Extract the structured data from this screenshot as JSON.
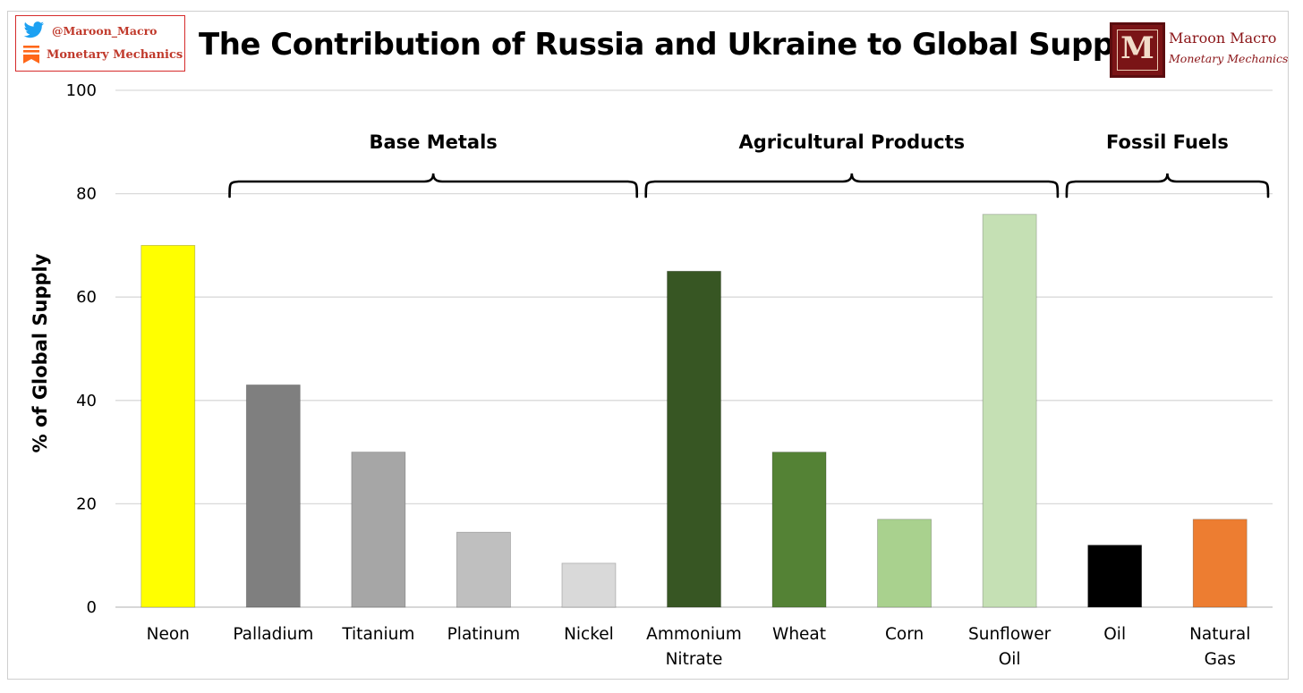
{
  "header": {
    "title": "The Contribution of Russia and Ukraine to Global Supply",
    "badge": {
      "twitter_handle": "@Maroon_Macro",
      "substack_name": "Monetary Mechanics",
      "twitter_color": "#1da1f2",
      "substack_color": "#ff6719"
    },
    "logo": {
      "name": "Maroon Macro",
      "tagline": "Monetary Mechanics",
      "color": "#7a1416"
    }
  },
  "chart_data": {
    "type": "bar",
    "title": "The Contribution of Russia and Ukraine to Global Supply",
    "ylabel": "% of Global Supply",
    "xlabel": "",
    "ylim": [
      0,
      100
    ],
    "yticks": [
      0,
      20,
      40,
      60,
      80,
      100
    ],
    "grid": true,
    "categories": [
      "Neon",
      "Palladium",
      "Titanium",
      "Platinum",
      "Nickel",
      "Ammonium Nitrate",
      "Wheat",
      "Corn",
      "Sunflower Oil",
      "Oil",
      "Natural Gas"
    ],
    "category_lines": [
      [
        "Neon"
      ],
      [
        "Palladium"
      ],
      [
        "Titanium"
      ],
      [
        "Platinum"
      ],
      [
        "Nickel"
      ],
      [
        "Ammonium",
        "Nitrate"
      ],
      [
        "Wheat"
      ],
      [
        "Corn"
      ],
      [
        "Sunflower",
        "Oil"
      ],
      [
        "Oil"
      ],
      [
        "Natural",
        "Gas"
      ]
    ],
    "values": [
      70,
      43,
      30,
      14.5,
      8.5,
      65,
      30,
      17,
      76,
      12,
      17
    ],
    "colors": [
      "#ffff00",
      "#7f7f7f",
      "#a6a6a6",
      "#bfbfbf",
      "#d9d9d9",
      "#375623",
      "#548235",
      "#a9d18e",
      "#c5e0b4",
      "#000000",
      "#ed7d31"
    ],
    "groups": [
      {
        "label": "Base Metals",
        "start": 1,
        "end": 4
      },
      {
        "label": "Agricultural Products",
        "start": 5,
        "end": 8
      },
      {
        "label": "Fossil Fuels",
        "start": 9,
        "end": 10
      }
    ]
  }
}
